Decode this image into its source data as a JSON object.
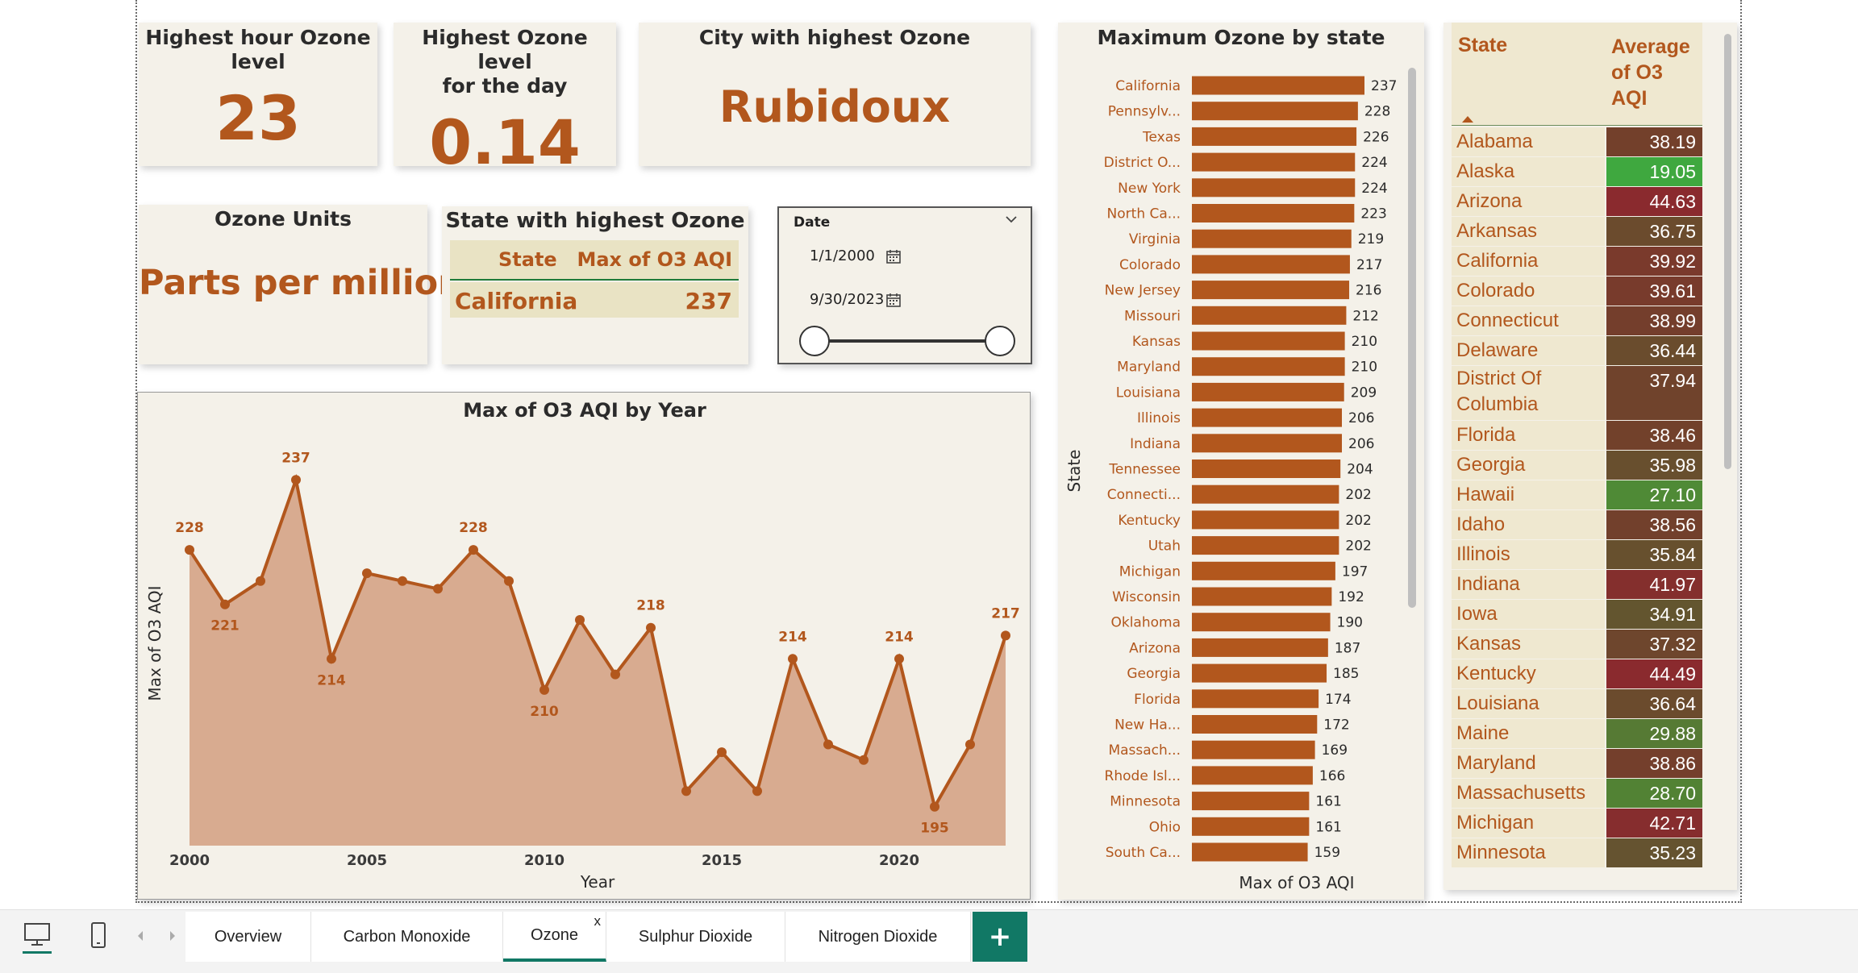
{
  "kpis": {
    "highest_hour": {
      "title_line1": "Highest hour Ozone",
      "title_line2": "level",
      "value": "23"
    },
    "highest_day": {
      "title_line1": "Highest Ozone level",
      "title_line2": "for the day",
      "value": "0.14"
    },
    "city": {
      "title": "City with highest Ozone",
      "value": "Rubidoux"
    },
    "units": {
      "title": "Ozone Units",
      "value": "Parts per million"
    }
  },
  "state_table": {
    "title": "State with highest Ozone",
    "col_state": "State",
    "col_max": "Max of O3 AQI",
    "state": "California",
    "value": "237"
  },
  "date_slicer": {
    "label": "Date",
    "start": "1/1/2000",
    "end": "9/30/2023",
    "start_fraction": 0,
    "end_fraction": 1
  },
  "colors": {
    "accent": "#b2571d",
    "area_fill": "#d8ab90",
    "card_bg": "#f4f1e9",
    "tab_active": "#117865"
  },
  "chart_data": [
    {
      "type": "area",
      "title": "Max of O3 AQI by Year",
      "xlabel": "Year",
      "ylabel": "Max of O3 AQI",
      "x": [
        2000,
        2001,
        2002,
        2003,
        2004,
        2005,
        2006,
        2007,
        2008,
        2009,
        2010,
        2011,
        2012,
        2013,
        2014,
        2015,
        2016,
        2017,
        2018,
        2019,
        2020,
        2021,
        2022,
        2023
      ],
      "values": [
        228,
        221,
        224,
        237,
        214,
        225,
        224,
        223,
        228,
        224,
        210,
        219,
        212,
        218,
        197,
        202,
        197,
        214,
        203,
        201,
        214,
        195,
        203,
        217
      ],
      "data_labels": [
        {
          "x": 2000,
          "text": "228"
        },
        {
          "x": 2001,
          "text": "221"
        },
        {
          "x": 2003,
          "text": "237"
        },
        {
          "x": 2004,
          "text": "214"
        },
        {
          "x": 2008,
          "text": "228"
        },
        {
          "x": 2010,
          "text": "210"
        },
        {
          "x": 2013,
          "text": "218"
        },
        {
          "x": 2017,
          "text": "214"
        },
        {
          "x": 2020,
          "text": "214"
        },
        {
          "x": 2021,
          "text": "195"
        },
        {
          "x": 2023,
          "text": "217"
        }
      ],
      "x_ticks": [
        "2000",
        "2005",
        "2010",
        "2015",
        "2020"
      ],
      "ylim": [
        190,
        242
      ],
      "grid": false
    },
    {
      "type": "bar",
      "orientation": "horizontal",
      "title": "Maximum Ozone by state",
      "xlabel": "Max of O3 AQI",
      "ylabel": "State",
      "categories": [
        "California",
        "Pennsylv...",
        "Texas",
        "District O...",
        "New York",
        "North Ca...",
        "Virginia",
        "Colorado",
        "New Jersey",
        "Missouri",
        "Kansas",
        "Maryland",
        "Louisiana",
        "Illinois",
        "Indiana",
        "Tennessee",
        "Connecti...",
        "Kentucky",
        "Utah",
        "Michigan",
        "Wisconsin",
        "Oklahoma",
        "Arizona",
        "Georgia",
        "Florida",
        "New Ha...",
        "Massach...",
        "Rhode Isl...",
        "Minnesota",
        "Ohio",
        "South Ca..."
      ],
      "values": [
        237,
        228,
        226,
        224,
        224,
        223,
        219,
        217,
        216,
        212,
        210,
        210,
        209,
        206,
        206,
        204,
        202,
        202,
        202,
        197,
        192,
        190,
        187,
        185,
        174,
        172,
        169,
        166,
        161,
        161,
        159
      ],
      "xlim": [
        0,
        237
      ],
      "grid": false
    },
    {
      "type": "table",
      "col_state": "State",
      "col_avg_lines": [
        "Average",
        "of O3",
        "AQI"
      ],
      "rows": [
        {
          "state": "Alabama",
          "value": "38.19",
          "color": "#73402b"
        },
        {
          "state": "Alaska",
          "value": "19.05",
          "color": "#3fa83f"
        },
        {
          "state": "Arizona",
          "value": "44.63",
          "color": "#8a2a2e"
        },
        {
          "state": "Arkansas",
          "value": "36.75",
          "color": "#6b4b2d"
        },
        {
          "state": "California",
          "value": "39.92",
          "color": "#7a3a2c"
        },
        {
          "state": "Colorado",
          "value": "39.61",
          "color": "#783b2c"
        },
        {
          "state": "Connecticut",
          "value": "38.99",
          "color": "#743e2c"
        },
        {
          "state": "Delaware",
          "value": "36.44",
          "color": "#6a4c2d"
        },
        {
          "state": "District Of Columbia",
          "value": "37.94",
          "color": "#70432c"
        },
        {
          "state": "Florida",
          "value": "38.46",
          "color": "#72412b"
        },
        {
          "state": "Georgia",
          "value": "35.98",
          "color": "#684f2e"
        },
        {
          "state": "Hawaii",
          "value": "27.10",
          "color": "#4f8a36"
        },
        {
          "state": "Idaho",
          "value": "38.56",
          "color": "#72402c"
        },
        {
          "state": "Illinois",
          "value": "35.84",
          "color": "#67502e"
        },
        {
          "state": "Indiana",
          "value": "41.97",
          "color": "#842f2d"
        },
        {
          "state": "Iowa",
          "value": "34.91",
          "color": "#63552f"
        },
        {
          "state": "Kansas",
          "value": "37.32",
          "color": "#6e462d"
        },
        {
          "state": "Kentucky",
          "value": "44.49",
          "color": "#8a2a2e"
        },
        {
          "state": "Louisiana",
          "value": "36.64",
          "color": "#6b4b2d"
        },
        {
          "state": "Maine",
          "value": "29.88",
          "color": "#567a34"
        },
        {
          "state": "Maryland",
          "value": "38.86",
          "color": "#743f2c"
        },
        {
          "state": "Massachusetts",
          "value": "28.70",
          "color": "#528234"
        },
        {
          "state": "Michigan",
          "value": "42.71",
          "color": "#862d2e"
        },
        {
          "state": "Minnesota",
          "value": "35.23",
          "color": "#655330"
        }
      ]
    }
  ],
  "tabs": [
    "Overview",
    "Carbon Monoxide",
    "Ozone",
    "Sulphur Dioxide",
    "Nitrogen Dioxide"
  ],
  "active_tab": "Ozone",
  "add_tab_symbol": "+",
  "close_symbol": "x"
}
